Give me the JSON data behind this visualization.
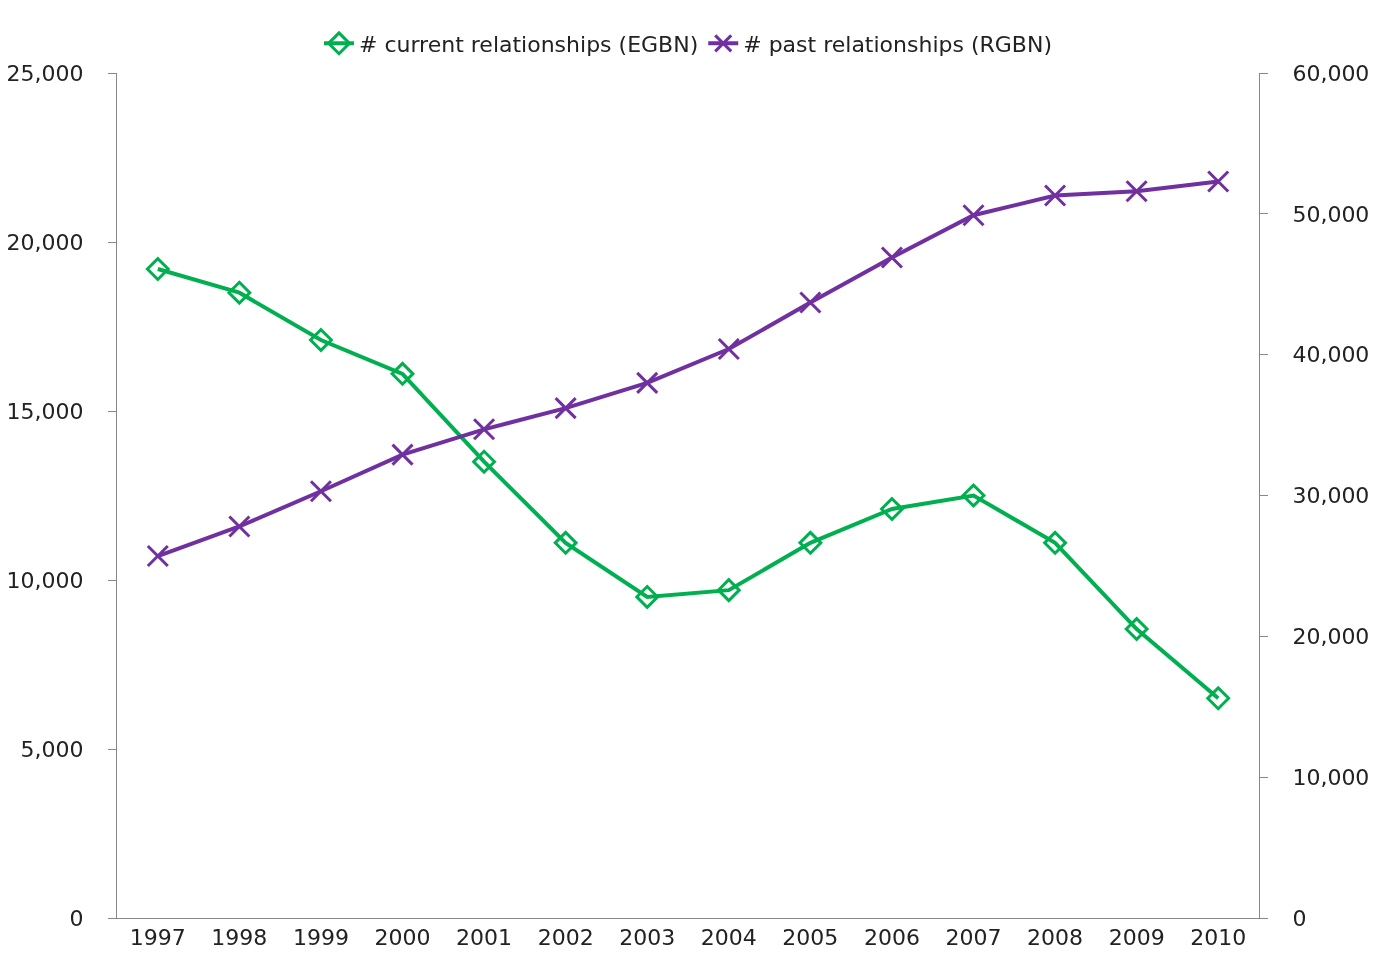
{
  "chart_data": {
    "type": "line",
    "categories": [
      "1997",
      "1998",
      "1999",
      "2000",
      "2001",
      "2002",
      "2003",
      "2004",
      "2005",
      "2006",
      "2007",
      "2008",
      "2009",
      "2010"
    ],
    "series": [
      {
        "name": "# current relationships (EGBN)",
        "color": "#00b050",
        "marker": "diamond",
        "values": [
          19200,
          18500,
          17100,
          16100,
          13500,
          11100,
          9500,
          9700,
          11100,
          12100,
          12500,
          11100,
          8550,
          6500
        ]
      },
      {
        "name": "# past relationships (RGBN)",
        "color": "#7030a0",
        "marker": "cross",
        "axis": "y2",
        "values": [
          25700,
          27800,
          30300,
          32900,
          34700,
          36200,
          38000,
          40400,
          43700,
          46900,
          49900,
          51300,
          51600,
          52300
        ]
      }
    ],
    "ylim": [
      0,
      25000
    ],
    "yticks": [
      {
        "value": 0,
        "label": "0"
      },
      {
        "value": 5000,
        "label": "5,000"
      },
      {
        "value": 10000,
        "label": "10,000"
      },
      {
        "value": 15000,
        "label": "15,000"
      },
      {
        "value": 20000,
        "label": "20,000"
      },
      {
        "value": 25000,
        "label": "25,000"
      }
    ],
    "y2lim": [
      0,
      60000
    ],
    "y2ticks": [
      {
        "value": 0,
        "label": "0"
      },
      {
        "value": 10000,
        "label": "10,000"
      },
      {
        "value": 20000,
        "label": "20,000"
      },
      {
        "value": 30000,
        "label": "30,000"
      },
      {
        "value": 40000,
        "label": "40,000"
      },
      {
        "value": 50000,
        "label": "50,000"
      },
      {
        "value": 60000,
        "label": "60,000"
      }
    ],
    "grid": false,
    "legend": "top",
    "line_style": "solid"
  }
}
